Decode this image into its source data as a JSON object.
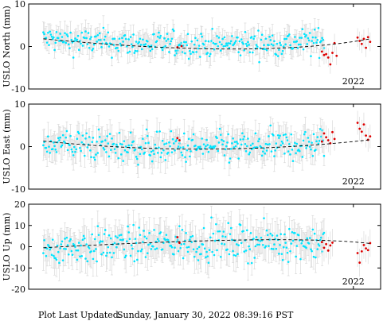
{
  "chart_data": [
    {
      "type": "scatter",
      "ylabel": "USLO North (mm)",
      "ylim": [
        -10,
        10
      ],
      "yticks": [
        -10,
        0,
        10
      ],
      "x_tick_label": "2022",
      "grid": false,
      "colors": {
        "data": "#00e5ff",
        "recent": "#dd0000",
        "errorbar": "#d4d4d4",
        "trend": "#000000"
      },
      "trend": {
        "x": [
          2020.52,
          2022.08
        ],
        "y": [
          1.8,
          1.8
        ],
        "via": {
          "x": 2021.55,
          "y": -0.6
        }
      },
      "series": [
        {
          "key": "data",
          "x_range": [
            2020.52,
            2021.86
          ],
          "base": [
            1.8,
            -0.6,
            1.3
          ],
          "spread": 1.5,
          "error": 2.2
        },
        {
          "key": "recent",
          "points": [
            [
              2021.16,
              -0.2
            ],
            [
              2021.18,
              0.1
            ],
            [
              2021.85,
              -1.2
            ],
            [
              2021.86,
              -2.0
            ],
            [
              2021.87,
              -1.8
            ],
            [
              2021.88,
              -2.6
            ],
            [
              2021.89,
              -4.2
            ],
            [
              2021.9,
              -1.5
            ],
            [
              2021.91,
              0.8
            ],
            [
              2021.92,
              -2.2
            ],
            [
              2022.02,
              2.1
            ],
            [
              2022.03,
              1.3
            ],
            [
              2022.04,
              0.6
            ],
            [
              2022.05,
              1.8
            ],
            [
              2022.06,
              -0.3
            ],
            [
              2022.07,
              2.2
            ],
            [
              2022.08,
              1.1
            ]
          ]
        }
      ]
    },
    {
      "type": "scatter",
      "ylabel": "USLO East (mm)",
      "ylim": [
        -10,
        10
      ],
      "yticks": [
        -10,
        0,
        10
      ],
      "x_tick_label": "2022",
      "grid": false,
      "colors": {
        "data": "#00e5ff",
        "recent": "#dd0000",
        "errorbar": "#d4d4d4",
        "trend": "#000000"
      },
      "trend": {
        "x": [
          2020.52,
          2022.08
        ],
        "y": [
          1.3,
          1.6
        ],
        "via": {
          "x": 2021.3,
          "y": -0.6
        }
      },
      "series": [
        {
          "key": "data",
          "x_range": [
            2020.52,
            2021.86
          ],
          "base": [
            1.0,
            -1.5,
            0.8
          ],
          "spread": 1.8,
          "error": 2.8
        },
        {
          "key": "recent",
          "points": [
            [
              2021.16,
              2.0
            ],
            [
              2021.17,
              1.5
            ],
            [
              2021.85,
              1.2
            ],
            [
              2021.86,
              3.1
            ],
            [
              2021.87,
              2.2
            ],
            [
              2021.88,
              1.5
            ],
            [
              2021.89,
              0.8
            ],
            [
              2021.9,
              3.4
            ],
            [
              2021.91,
              1.8
            ],
            [
              2022.02,
              5.6
            ],
            [
              2022.03,
              4.2
            ],
            [
              2022.04,
              3.5
            ],
            [
              2022.05,
              5.2
            ],
            [
              2022.06,
              2.6
            ],
            [
              2022.07,
              1.6
            ],
            [
              2022.08,
              2.4
            ]
          ]
        }
      ]
    },
    {
      "type": "scatter",
      "ylabel": "USLO Up (mm)",
      "ylim": [
        -20,
        20
      ],
      "yticks": [
        -20,
        -10,
        0,
        10,
        20
      ],
      "x_tick_label": "2022",
      "grid": false,
      "colors": {
        "data": "#00e5ff",
        "recent": "#dd0000",
        "errorbar": "#d4d4d4",
        "trend": "#000000"
      },
      "trend": {
        "x": [
          2020.52,
          2022.08
        ],
        "y": [
          -0.5,
          1.5
        ],
        "via": {
          "x": 2021.7,
          "y": 3.2
        }
      },
      "series": [
        {
          "key": "data",
          "x_range": [
            2020.52,
            2021.86
          ],
          "base": [
            -1.0,
            3.0,
            2.0
          ],
          "spread": 4.0,
          "error": 6.5
        },
        {
          "key": "recent",
          "points": [
            [
              2021.16,
              4.5
            ],
            [
              2021.17,
              1.8
            ],
            [
              2021.85,
              2.2
            ],
            [
              2021.86,
              -0.5
            ],
            [
              2021.87,
              1.2
            ],
            [
              2021.88,
              -1.8
            ],
            [
              2021.89,
              0.6
            ],
            [
              2021.9,
              1.9
            ],
            [
              2022.02,
              -3.0
            ],
            [
              2022.03,
              -7.5
            ],
            [
              2022.04,
              -2.2
            ],
            [
              2022.05,
              0.8
            ],
            [
              2022.06,
              -0.8
            ],
            [
              2022.07,
              -1.6
            ],
            [
              2022.08,
              1.7
            ]
          ]
        }
      ]
    }
  ],
  "footer": {
    "label": "Plot Last Updated:",
    "timestamp": "Sunday, January 30, 2022 08:39:16 PST"
  }
}
